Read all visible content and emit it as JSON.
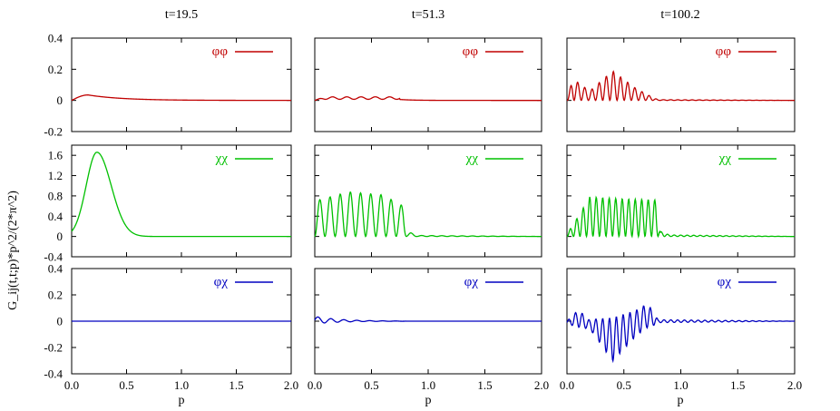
{
  "figure": {
    "column_titles": [
      "t=19.5",
      "t=51.3",
      "t=100.2"
    ],
    "xlabel": "p",
    "ylabel": "G_ij(t,t;p)*p^2/(2*π^2)"
  },
  "chart_data": {
    "type": "line",
    "xlabel": "p",
    "ylabel": "G_ij(t,t;p)*p^2/(2*π^2)",
    "columns": [
      "t=19.5",
      "t=51.3",
      "t=100.2"
    ],
    "xlim": [
      0,
      2.0
    ],
    "xticks": [
      "0.0",
      "0.5",
      "1.0",
      "1.5",
      "2.0"
    ],
    "x_tick_values": [
      0,
      0.5,
      1.0,
      1.5,
      2.0
    ],
    "rows": [
      {
        "series": "φφ",
        "color": "#c00000",
        "ylim": [
          -0.2,
          0.4
        ],
        "yticks": [
          "0.4",
          "0.2",
          "0",
          "-0.2"
        ],
        "y_tick_values": [
          0.4,
          0.2,
          0,
          -0.2
        ],
        "panels": [
          {
            "t": "t=19.5",
            "curve": {
              "kind": "bump",
              "peak_x": 0.15,
              "peak_y": 0.035,
              "width": 0.25,
              "decay": 1.0
            }
          },
          {
            "t": "t=51.3",
            "curve": {
              "kind": "osc",
              "base": 0.015,
              "amp": 0.008,
              "freq": 50,
              "cutoff": 0.75
            }
          },
          {
            "t": "t=100.2",
            "curve": {
              "kind": "osc_envelope",
              "envelope": [
                [
                  0.0,
                  0.0
                ],
                [
                  0.05,
                  0.14
                ],
                [
                  0.2,
                  0.06
                ],
                [
                  0.4,
                  0.19
                ],
                [
                  0.6,
                  0.08
                ],
                [
                  0.75,
                  0.02
                ],
                [
                  0.8,
                  0.005
                ],
                [
                  2.0,
                  0.0
                ]
              ],
              "freq": 100
            }
          }
        ]
      },
      {
        "series": "χχ",
        "color": "#00c000",
        "ylim": [
          -0.4,
          1.8
        ],
        "yticks": [
          "1.6",
          "1.2",
          "0.8",
          "0.4",
          "0",
          "-0.4"
        ],
        "y_tick_values": [
          1.6,
          1.2,
          0.8,
          0.4,
          0,
          -0.4
        ],
        "panels": [
          {
            "t": "t=19.5",
            "curve": {
              "kind": "peak",
              "peak_x": 0.23,
              "peak_y": 1.66,
              "width": 0.13
            }
          },
          {
            "t": "t=51.3",
            "curve": {
              "kind": "osc_envelope",
              "envelope": [
                [
                  0.0,
                  0.7
                ],
                [
                  0.3,
                  0.88
                ],
                [
                  0.6,
                  0.82
                ],
                [
                  0.78,
                  0.6
                ],
                [
                  0.82,
                  0.1
                ],
                [
                  0.9,
                  0.02
                ],
                [
                  2.0,
                  0.0
                ]
              ],
              "freq": 70
            }
          },
          {
            "t": "t=100.2",
            "curve": {
              "kind": "osc_envelope",
              "envelope": [
                [
                  0.0,
                  0.05
                ],
                [
                  0.1,
                  0.4
                ],
                [
                  0.2,
                  0.78
                ],
                [
                  0.5,
                  0.74
                ],
                [
                  0.78,
                  0.72
                ],
                [
                  0.82,
                  0.1
                ],
                [
                  0.9,
                  0.03
                ],
                [
                  2.0,
                  0.0
                ]
              ],
              "freq": 110
            }
          }
        ]
      },
      {
        "series": "φχ",
        "color": "#0000c0",
        "ylim": [
          -0.4,
          0.4
        ],
        "yticks": [
          "0.4",
          "0.2",
          "0",
          "-0.2",
          "-0.4"
        ],
        "y_tick_values": [
          0.4,
          0.2,
          0,
          -0.2,
          -0.4
        ],
        "panels": [
          {
            "t": "t=19.5",
            "curve": {
              "kind": "flat",
              "value": 0.0
            }
          },
          {
            "t": "t=51.3",
            "curve": {
              "kind": "decay_osc",
              "amp": 0.035,
              "freq": 55,
              "decay": 4.5,
              "cutoff": 0.8
            }
          },
          {
            "t": "t=100.2",
            "curve": {
              "kind": "signed_osc",
              "envelope": [
                [
                  0.0,
                  0.02
                ],
                [
                  0.1,
                  0.12
                ],
                [
                  0.2,
                  0.06
                ],
                [
                  0.4,
                  0.3
                ],
                [
                  0.6,
                  0.18
                ],
                [
                  0.72,
                  0.16
                ],
                [
                  0.8,
                  0.02
                ],
                [
                  2.0,
                  0.0
                ]
              ],
              "center": [
                [
                  0.0,
                  -0.01
                ],
                [
                  0.1,
                  0.02
                ],
                [
                  0.25,
                  -0.05
                ],
                [
                  0.4,
                  -0.14
                ],
                [
                  0.55,
                  -0.05
                ],
                [
                  0.7,
                  0.04
                ],
                [
                  0.8,
                  0.0
                ],
                [
                  2.0,
                  0.0
                ]
              ],
              "freq": 105
            }
          }
        ]
      }
    ]
  }
}
